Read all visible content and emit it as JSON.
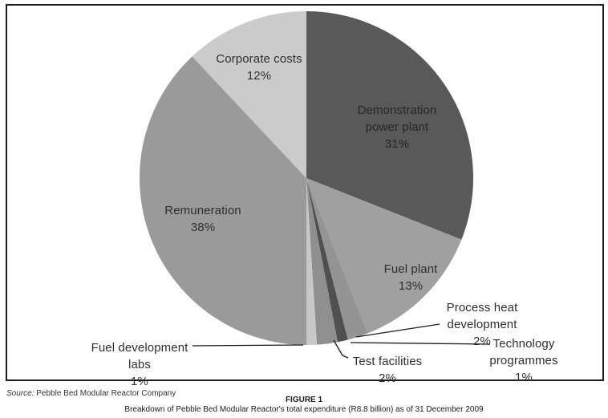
{
  "figure": {
    "source_prefix": "Source:",
    "source_text": " Pebble Bed Modular Reactor Company",
    "figure_label": "FIGURE 1",
    "caption": "Breakdown of Pebble Bed Modular Reactor's total expenditure (R8.8 billion) as of 31 December 2009"
  },
  "chart_data": {
    "type": "pie",
    "title": "",
    "units": "%",
    "total": 100,
    "start_angle_deg": 0,
    "direction": "clockwise",
    "legend": "none",
    "slices": [
      {
        "label": "Demonstration power plant",
        "value": 31,
        "pct_label": "31%",
        "color": "#595959"
      },
      {
        "label": "Fuel plant",
        "value": 13,
        "pct_label": "13%",
        "color": "#a0a0a0"
      },
      {
        "label": "Process heat development",
        "value": 2,
        "pct_label": "2%",
        "color": "#949494"
      },
      {
        "label": "Technology programmes",
        "value": 1,
        "pct_label": "1%",
        "color": "#505050"
      },
      {
        "label": "Test facilities",
        "value": 2,
        "pct_label": "2%",
        "color": "#8f8f8f"
      },
      {
        "label": "Fuel development labs",
        "value": 1,
        "pct_label": "1%",
        "color": "#c8c8c8"
      },
      {
        "label": "Remuneration",
        "value": 38,
        "pct_label": "38%",
        "color": "#9a9a9a"
      },
      {
        "label": "Corporate costs",
        "value": 12,
        "pct_label": "12%",
        "color": "#cbcbcb"
      }
    ]
  }
}
